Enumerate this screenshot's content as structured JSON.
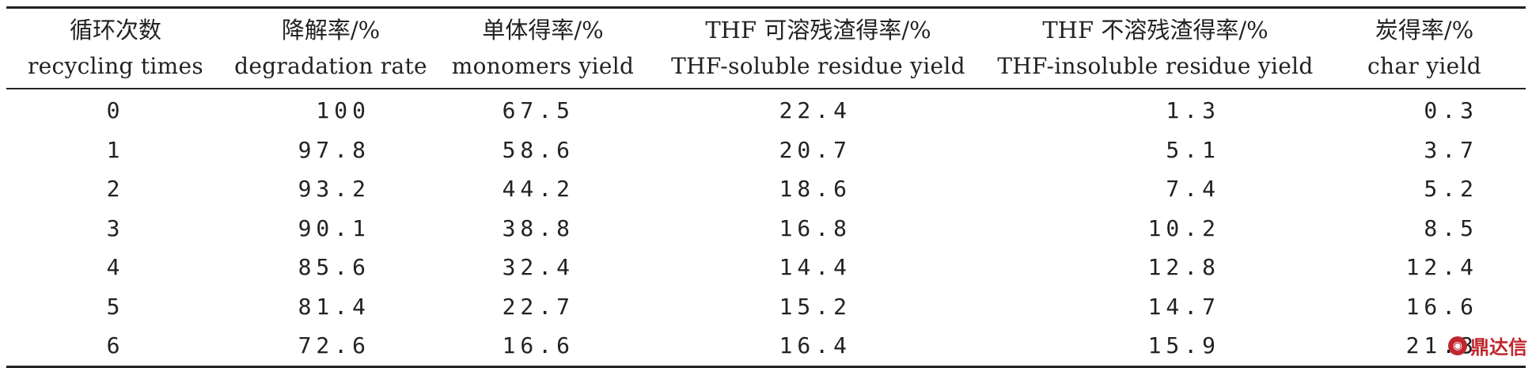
{
  "table": {
    "columns": [
      {
        "zh": "循环次数",
        "en": "recycling times"
      },
      {
        "zh": "降解率/%",
        "en": "degradation rate"
      },
      {
        "zh": "单体得率/%",
        "en": "monomers yield"
      },
      {
        "zh": "THF 可溶残渣得率/%",
        "en": "THF-soluble residue yield"
      },
      {
        "zh": "THF 不溶残渣得率/%",
        "en": "THF-insoluble residue yield"
      },
      {
        "zh": "炭得率/%",
        "en": "char yield"
      }
    ],
    "rows": [
      [
        "0",
        "100",
        "67.5",
        "22.4",
        "1.3",
        "0.3"
      ],
      [
        "1",
        "97.8",
        "58.6",
        "20.7",
        "5.1",
        "3.7"
      ],
      [
        "2",
        "93.2",
        "44.2",
        "18.6",
        "7.4",
        "5.2"
      ],
      [
        "3",
        "90.1",
        "38.8",
        "16.8",
        "10.2",
        "8.5"
      ],
      [
        "4",
        "85.6",
        "32.4",
        "14.4",
        "12.8",
        "12.4"
      ],
      [
        "5",
        "81.4",
        "22.7",
        "15.2",
        "14.7",
        "16.6"
      ],
      [
        "6",
        "72.6",
        "16.6",
        "16.4",
        "15.9",
        "21.3"
      ]
    ]
  },
  "watermark": {
    "text": "鼎达信",
    "icon": "logo-mark-icon",
    "color": "#c0262d"
  }
}
